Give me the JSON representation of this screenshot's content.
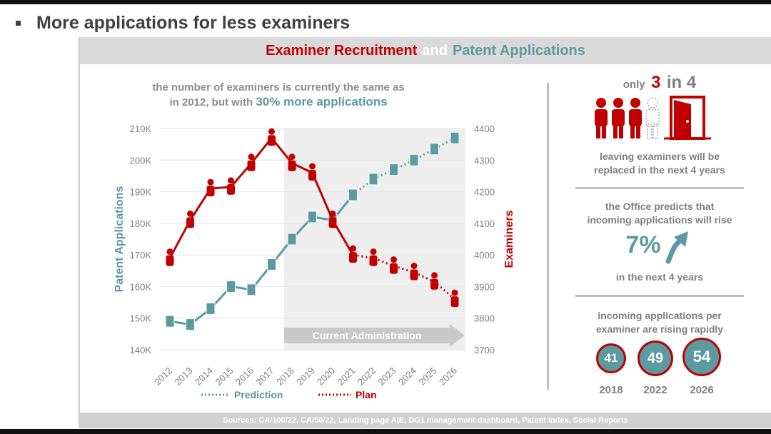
{
  "slide_title": "More applications for less examiners",
  "header": {
    "part1": "Examiner Recruitment",
    "part2": "and",
    "part3": "Patent Applications"
  },
  "chart_subtitle": {
    "line1": "the number of examiners is currently the same as",
    "line2_prefix": "in 2012, but with",
    "line2_highlight": "30% more applications"
  },
  "chart_data": {
    "type": "line",
    "categories": [
      "2012",
      "2013",
      "2014",
      "2015",
      "2016",
      "2017",
      "2018",
      "2019",
      "2020",
      "2021",
      "2022",
      "2023",
      "2024",
      "2025",
      "2026"
    ],
    "series": [
      {
        "name": "Prediction",
        "axis": "left",
        "color": "#5b9aa0",
        "values": [
          149000,
          148000,
          153000,
          160000,
          159000,
          167000,
          175000,
          182000,
          181000,
          189000,
          194000,
          197000,
          200000,
          203500,
          207000
        ],
        "dotted_from_index": 9
      },
      {
        "name": "Plan",
        "axis": "right",
        "color": "#c00000",
        "values": [
          3990,
          4110,
          4210,
          4215,
          4290,
          4370,
          4290,
          4260,
          4110,
          4000,
          3990,
          3965,
          3945,
          3915,
          3860
        ],
        "dotted_from_index": 9
      }
    ],
    "left_axis": {
      "label": "Patent Applications",
      "ticks": [
        "140K",
        "150K",
        "160K",
        "170K",
        "180K",
        "190K",
        "200K",
        "210K"
      ],
      "min": 140000,
      "max": 210000
    },
    "right_axis": {
      "label": "Examiners",
      "ticks": [
        "3700",
        "3800",
        "3900",
        "4000",
        "4100",
        "4200",
        "4300",
        "4400"
      ],
      "min": 3700,
      "max": 4400
    },
    "annotation": "Current Administration",
    "shaded_from": "2018",
    "legend": [
      "Prediction",
      "Plan"
    ]
  },
  "side": {
    "only": "only",
    "three": "3",
    "in4": "in 4",
    "replaced_line1": "leaving examiners will be",
    "replaced_line2": "replaced in the next 4 years",
    "predict_line1": "the Office predicts that",
    "predict_line2": "incoming applications will rise",
    "pct": "7%",
    "next4": "in the next 4 years",
    "perexam_line1": "incoming applications per",
    "perexam_line2": "examiner are rising rapidly",
    "circles": [
      {
        "value": "41",
        "year": "2018"
      },
      {
        "value": "49",
        "year": "2022"
      },
      {
        "value": "54",
        "year": "2026"
      }
    ]
  },
  "footer": "Sources: CA/100/22, CA/50/22, Landing page AIE, DG1 management dashboard, Patent Index, Social Reports",
  "colors": {
    "teal": "#5b9aa0",
    "red": "#c00000",
    "grey": "#7f7f7f"
  },
  "icons": [
    "person-icon",
    "door-icon",
    "arrow-up-icon",
    "bullet-icon"
  ]
}
